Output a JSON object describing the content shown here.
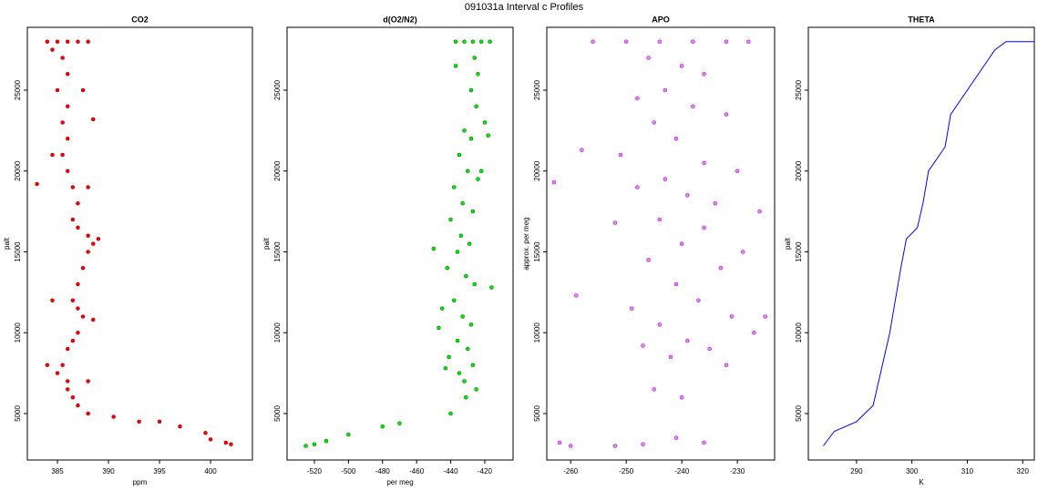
{
  "title": "091031a   Interval c Profiles",
  "chart_data": [
    {
      "type": "scatter",
      "title": "CO2",
      "x_label": "ppm",
      "y_label": "palt",
      "color": "#ff0000",
      "stroke": "#8b0000",
      "xlim": [
        382.05,
        404.1
      ],
      "ylim": [
        2127,
        28887
      ],
      "xticks": [
        385,
        390,
        395,
        400
      ],
      "yticks": [
        5000,
        10000,
        15000,
        20000,
        25000
      ],
      "x": [
        384,
        385,
        386,
        387,
        388,
        385.5,
        386,
        385,
        386,
        385.5,
        386,
        385.5,
        386,
        386.5,
        387,
        386.5,
        387,
        388,
        388.5,
        388,
        387.5,
        387,
        386.5,
        387,
        387.5,
        387,
        386.5,
        386,
        385.5,
        385,
        386,
        386,
        386.5,
        387,
        388,
        390.5,
        393,
        395,
        397,
        399.5,
        400,
        401.5,
        402,
        383,
        388.5,
        384.5,
        387.5,
        384.5,
        388,
        389,
        384.5,
        388.5,
        384,
        388
      ],
      "values": [
        28000,
        28000,
        28000,
        28000,
        28000,
        27000,
        26000,
        25000,
        24000,
        23000,
        22000,
        21000,
        20000,
        19000,
        18000,
        17000,
        16500,
        16000,
        15500,
        15000,
        14000,
        13000,
        12000,
        11500,
        11000,
        10000,
        9500,
        9000,
        8000,
        7500,
        7000,
        6500,
        6000,
        5500,
        5000,
        4800,
        4500,
        4500,
        4200,
        3800,
        3400,
        3200,
        3100,
        19200,
        23200,
        27500,
        25000,
        21000,
        19000,
        15800,
        12000,
        10800,
        8000,
        7000
      ]
    },
    {
      "type": "scatter",
      "title": "d(O2/N2)",
      "x_label": "per meg",
      "y_label": "palt",
      "color": "#00ee00",
      "stroke": "#005500",
      "xlim": [
        -536,
        -403.4
      ],
      "ylim": [
        2127,
        28887
      ],
      "xticks": [
        -520,
        -500,
        -480,
        -460,
        -440,
        -420
      ],
      "yticks": [
        5000,
        10000,
        15000,
        20000,
        25000
      ],
      "x": [
        -437,
        -432,
        -427,
        -422,
        -417,
        -426,
        -424,
        -428,
        -425,
        -420,
        -432,
        -428,
        -435,
        -430,
        -424,
        -438,
        -433,
        -427,
        -440,
        -434,
        -429,
        -436,
        -442,
        -431,
        -426,
        -438,
        -445,
        -433,
        -428,
        -447,
        -436,
        -430,
        -441,
        -427,
        -435,
        -432,
        -425,
        -431,
        -440,
        -470,
        -480,
        -500,
        -513,
        -520,
        -525,
        -418,
        -450,
        -422,
        -437,
        -416,
        -443
      ],
      "values": [
        28000,
        28000,
        28000,
        28000,
        28000,
        27000,
        26000,
        25000,
        24000,
        23000,
        22500,
        22000,
        21000,
        20000,
        19500,
        19000,
        18000,
        17500,
        17000,
        16000,
        15500,
        15000,
        14000,
        13500,
        13000,
        12000,
        11500,
        11000,
        10500,
        10300,
        9500,
        9000,
        8500,
        8000,
        7500,
        7000,
        6500,
        6000,
        5000,
        4400,
        4200,
        3700,
        3300,
        3100,
        3000,
        22200,
        15200,
        20000,
        26500,
        12800,
        7800
      ]
    },
    {
      "type": "scatter",
      "title": "APO",
      "y_label": "approx. per meg",
      "color": "#ee82ee",
      "stroke": "#9400d3",
      "xlim": [
        -264.3,
        -223.3
      ],
      "ylim": [
        2127,
        28887
      ],
      "xticks": [
        -260,
        -250,
        -240,
        -230
      ],
      "yticks": [
        5000,
        10000,
        15000,
        20000,
        25000
      ],
      "x": [
        -256,
        -250,
        -244,
        -238,
        -232,
        -228,
        -246,
        -240,
        -236,
        -243,
        -248,
        -238,
        -232,
        -245,
        -241,
        -258,
        -251,
        -236,
        -230,
        -243,
        -248,
        -239,
        -234,
        -226,
        -244,
        -252,
        -236,
        -240,
        -229,
        -246,
        -233,
        -259,
        -241,
        -237,
        -249,
        -231,
        -244,
        -227,
        -239,
        -235,
        -247,
        -242,
        -232,
        -262,
        -260,
        -252,
        -247,
        -241,
        -236,
        -263,
        -225,
        -245,
        -240
      ],
      "values": [
        28000,
        28000,
        28000,
        28000,
        28000,
        28000,
        27000,
        26500,
        26000,
        25000,
        24500,
        24000,
        23500,
        23000,
        22000,
        21300,
        21000,
        20500,
        20000,
        19500,
        19000,
        18500,
        18000,
        17500,
        17000,
        16800,
        16500,
        15500,
        15000,
        14500,
        14000,
        12300,
        13000,
        12000,
        11500,
        11000,
        10500,
        10000,
        9500,
        9000,
        9200,
        8500,
        8000,
        3200,
        3000,
        3000,
        3100,
        3500,
        3200,
        19300,
        11000,
        6500,
        6000
      ]
    },
    {
      "type": "line",
      "title": "THETA",
      "x_label": "K",
      "y_label": "palt",
      "color": "#0000ff",
      "xlim": [
        281.3,
        322.1
      ],
      "ylim": [
        2127,
        28887
      ],
      "xticks": [
        290,
        300,
        310,
        320
      ],
      "yticks": [
        5000,
        10000,
        15000,
        20000,
        25000
      ],
      "x": [
        284,
        286,
        290,
        293,
        294,
        295,
        296,
        297,
        298,
        299,
        301,
        302,
        303,
        305,
        306,
        307,
        309,
        311,
        313,
        315,
        317,
        322
      ],
      "values": [
        3000,
        3900,
        4500,
        5500,
        7000,
        8500,
        10000,
        12000,
        14000,
        15800,
        16500,
        18000,
        20000,
        21000,
        21500,
        23500,
        24500,
        25500,
        26500,
        27500,
        28000,
        28000
      ]
    }
  ]
}
